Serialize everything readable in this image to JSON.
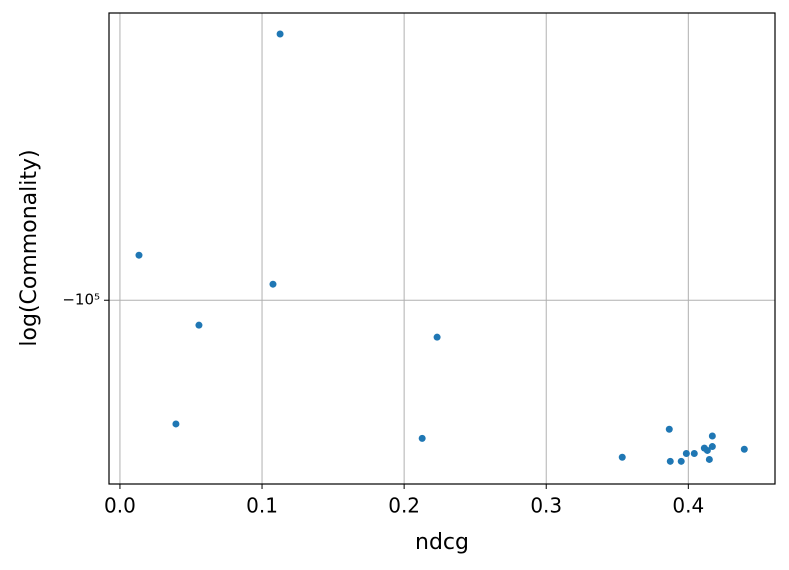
{
  "chart_data": {
    "type": "scatter",
    "x_label": "ndcg",
    "y_label": "log(Commonality)",
    "yscale": "log",
    "color": "#1f77b4",
    "grid": true,
    "x": [
      0.0134,
      0.1127,
      0.1077,
      0.0556,
      0.0394,
      0.2232,
      0.2127,
      0.3535,
      0.3866,
      0.3873,
      0.395,
      0.3986,
      0.4042,
      0.4113,
      0.4134,
      0.4169,
      0.4169,
      0.4148,
      0.4394
    ],
    "values": [
      -77700,
      -22500,
      -91400,
      -115000,
      -200000,
      -123000,
      -216800,
      -241000,
      -206000,
      -246600,
      -246600,
      -236000,
      -236000,
      -229000,
      -232000,
      -214000,
      -227000,
      -244000,
      -230500
    ],
    "xlim": [
      -0.0077,
      0.461
    ],
    "ylim": [
      -280000,
      -20000
    ],
    "xticks": [
      {
        "value": 0,
        "label": "0.0"
      },
      0.1,
      0.2,
      0.3,
      0.4
    ],
    "yticks": [
      {
        "value": -100000,
        "label": "−10⁵"
      }
    ]
  }
}
